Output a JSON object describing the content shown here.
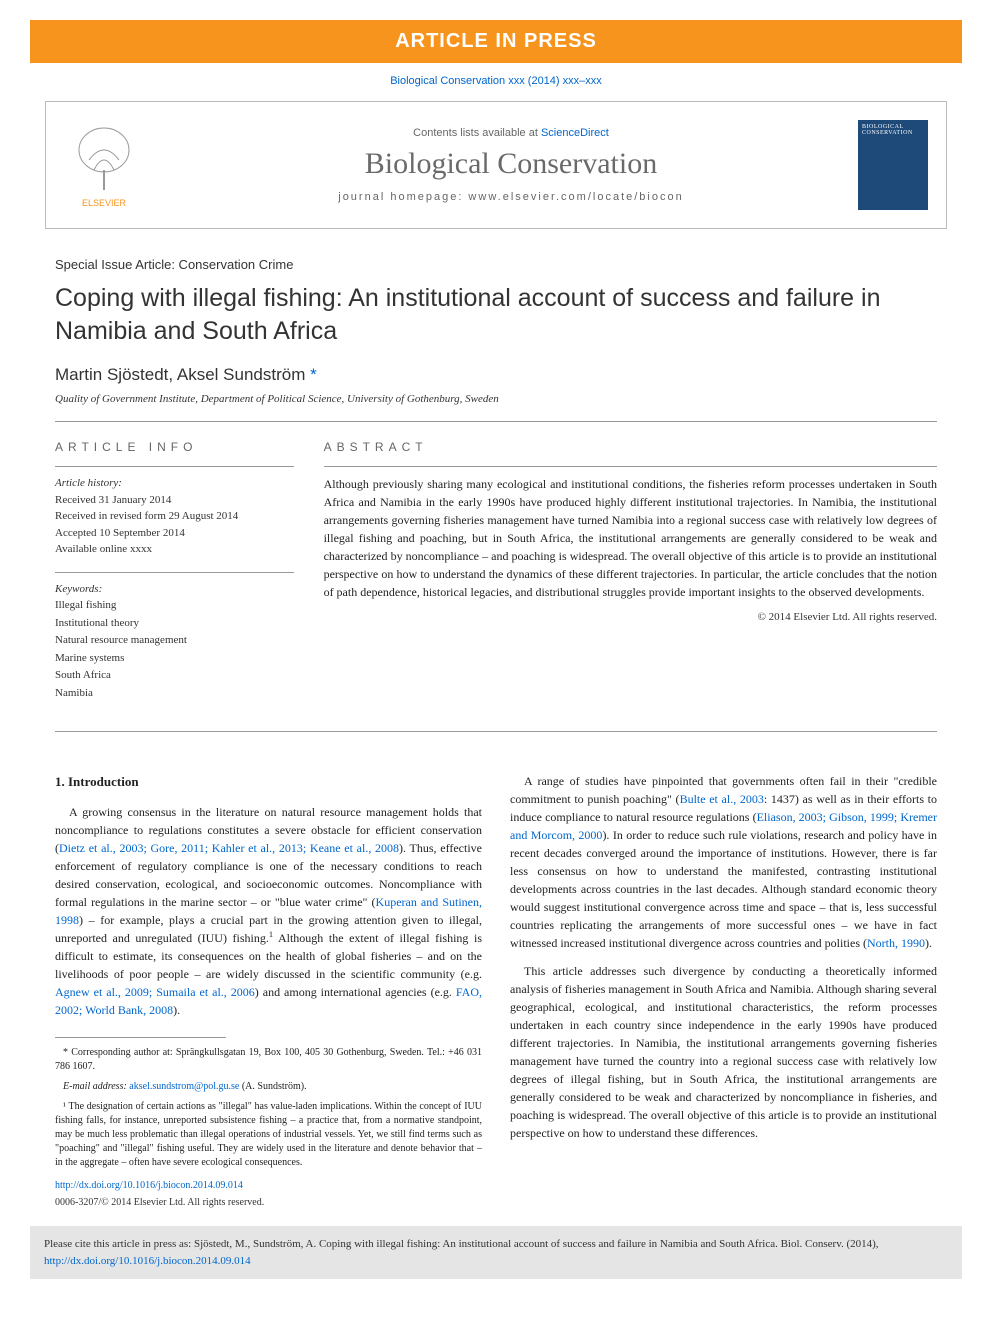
{
  "banner": "ARTICLE IN PRESS",
  "journal_ref": "Biological Conservation xxx (2014) xxx–xxx",
  "header": {
    "contents_prefix": "Contents lists available at ",
    "contents_link": "ScienceDirect",
    "journal_name": "Biological Conservation",
    "homepage": "journal homepage: www.elsevier.com/locate/biocon",
    "cover_text": "BIOLOGICAL CONSERVATION",
    "publisher": "ELSEVIER"
  },
  "article": {
    "special_issue": "Special Issue Article: Conservation Crime",
    "title": "Coping with illegal fishing: An institutional account of success and failure in Namibia and South Africa",
    "authors": "Martin Sjöstedt, Aksel Sundström",
    "author_mark": "*",
    "affiliation": "Quality of Government Institute, Department of Political Science, University of Gothenburg, Sweden"
  },
  "info": {
    "label": "ARTICLE INFO",
    "history_label": "Article history:",
    "received": "Received 31 January 2014",
    "revised": "Received in revised form 29 August 2014",
    "accepted": "Accepted 10 September 2014",
    "available": "Available online xxxx",
    "keywords_label": "Keywords:",
    "keywords": [
      "Illegal fishing",
      "Institutional theory",
      "Natural resource management",
      "Marine systems",
      "South Africa",
      "Namibia"
    ]
  },
  "abstract": {
    "label": "ABSTRACT",
    "text": "Although previously sharing many ecological and institutional conditions, the fisheries reform processes undertaken in South Africa and Namibia in the early 1990s have produced highly different institutional trajectories. In Namibia, the institutional arrangements governing fisheries management have turned Namibia into a regional success case with relatively low degrees of illegal fishing and poaching, but in South Africa, the institutional arrangements are generally considered to be weak and characterized by noncompliance – and poaching is widespread. The overall objective of this article is to provide an institutional perspective on how to understand the dynamics of these different trajectories. In particular, the article concludes that the notion of path dependence, historical legacies, and distributional struggles provide important insights to the observed developments.",
    "copyright": "© 2014 Elsevier Ltd. All rights reserved."
  },
  "body": {
    "intro_heading": "1. Introduction",
    "p1a": "A growing consensus in the literature on natural resource management holds that noncompliance to regulations constitutes a severe obstacle for efficient conservation (",
    "p1_ref1": "Dietz et al., 2003; Gore, 2011; Kahler et al., 2013; Keane et al., 2008",
    "p1b": "). Thus, effective enforcement of regulatory compliance is one of the necessary conditions to reach desired conservation, ecological, and socioeconomic outcomes. Noncompliance with formal regulations in the marine sector – or \"blue water crime\" (",
    "p1_ref2": "Kuperan and Sutinen, 1998",
    "p1c": ") – for example, plays a crucial part in the growing attention given to illegal, unreported and unregulated (IUU) fishing.",
    "p1_fn": "1",
    "p1d": " Although the extent of illegal fishing is difficult to estimate, its consequences on the health of global fisheries – and on the livelihoods of poor people – are widely discussed in the scientific community (e.g. ",
    "p1_ref3": "Agnew et al., 2009; Sumaila et al., 2006",
    "p1e": ") and among international agencies (e.g. ",
    "p1_ref4": "FAO, 2002; World Bank, 2008",
    "p1f": ").",
    "p2a": "A range of studies have pinpointed that governments often fail in their \"credible commitment to punish poaching\" (",
    "p2_ref1": "Bulte et al., 2003",
    "p2b": ": 1437) as well as in their efforts to induce compliance to natural resource regulations (",
    "p2_ref2": "Eliason, 2003; Gibson, 1999; Kremer and Morcom, 2000",
    "p2c": "). In order to reduce such rule violations, research and policy have in recent decades converged around the importance of institutions. However, there is far less consensus on how to understand the manifested, contrasting institutional developments across countries in the last decades. Although standard economic theory would suggest institutional convergence across time and space – that is, less successful countries replicating the arrangements of more successful ones – we have in fact witnessed increased institutional divergence across countries and polities (",
    "p2_ref3": "North, 1990",
    "p2d": ").",
    "p3": "This article addresses such divergence by conducting a theoretically informed analysis of fisheries management in South Africa and Namibia. Although sharing several geographical, ecological, and institutional characteristics, the reform processes undertaken in each country since independence in the early 1990s have produced different trajectories. In Namibia, the institutional arrangements governing fisheries management have turned the country into a regional success case with relatively low degrees of illegal fishing, but in South Africa, the institutional arrangements are generally considered to be weak and characterized by noncompliance in fisheries, and poaching is widespread. The overall objective of this article is to provide an institutional perspective on how to understand these differences."
  },
  "footnotes": {
    "corr": "* Corresponding author at: Sprängkullsgatan 19, Box 100, 405 30 Gothenburg, Sweden. Tel.: +46 031 786 1607.",
    "email_label": "E-mail address:",
    "email": "aksel.sundstrom@pol.gu.se",
    "email_suffix": " (A. Sundström).",
    "fn1": "¹ The designation of certain actions as \"illegal\" has value-laden implications. Within the concept of IUU fishing falls, for instance, unreported subsistence fishing – a practice that, from a normative standpoint, may be much less problematic than illegal operations of industrial vessels. Yet, we still find terms such as \"poaching\" and \"illegal\" fishing useful. They are widely used in the literature and denote behavior that – in the aggregate – often have severe ecological consequences."
  },
  "doi": {
    "url": "http://dx.doi.org/10.1016/j.biocon.2014.09.014",
    "issn": "0006-3207/© 2014 Elsevier Ltd. All rights reserved."
  },
  "cite_box": {
    "text_a": "Please cite this article in press as: Sjöstedt, M., Sundström, A. Coping with illegal fishing: An institutional account of success and failure in Namibia and South Africa. Biol. Conserv. (2014), ",
    "link": "http://dx.doi.org/10.1016/j.biocon.2014.09.014"
  },
  "colors": {
    "orange": "#f7941e",
    "link_blue": "#0066cc",
    "gray_text": "#6a6a6a",
    "cite_bg": "#e5e5e5",
    "cover_blue": "#1e4a7a"
  }
}
